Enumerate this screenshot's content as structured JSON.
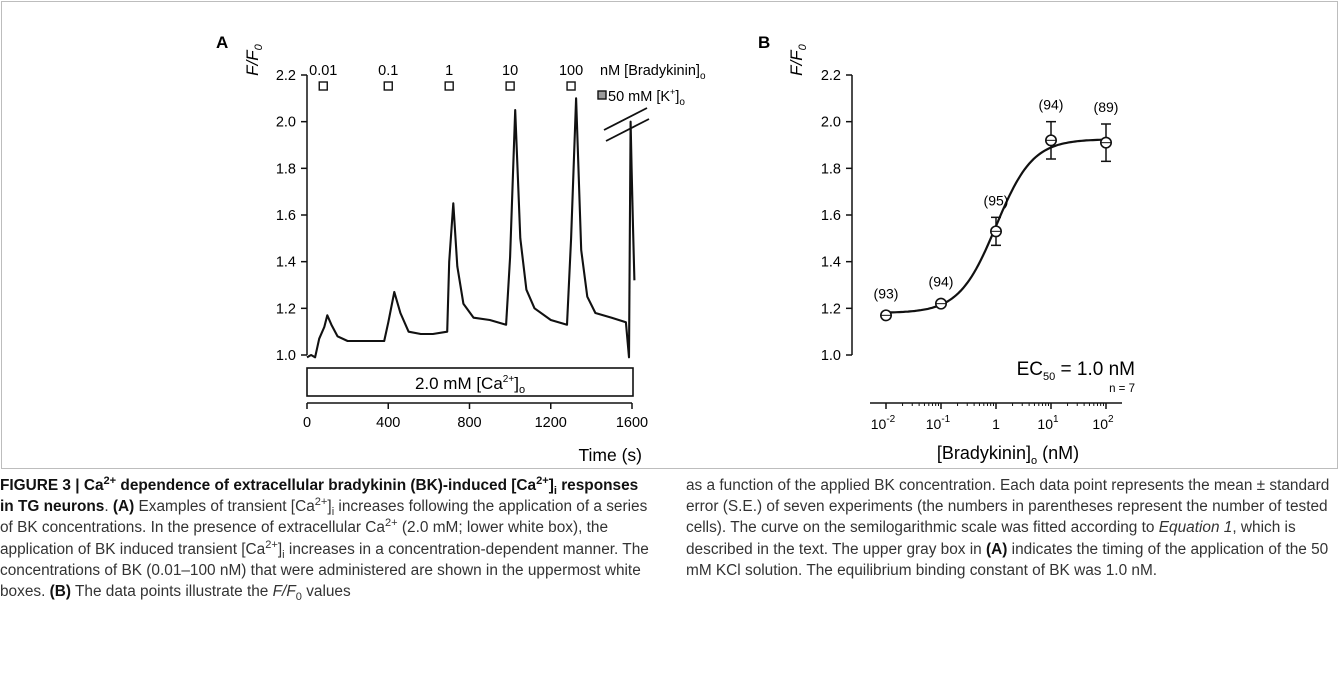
{
  "panelA": {
    "letter": "A",
    "ylabel": "F/F",
    "ylabel_sub": "0",
    "yticks": [
      "1.0",
      "1.2",
      "1.4",
      "1.6",
      "1.8",
      "2.0",
      "2.2"
    ],
    "xticks": [
      "0",
      "400",
      "800",
      "1200",
      "1600"
    ],
    "xlabel": "Time (s)",
    "conc_labels": [
      "0.01",
      "0.1",
      "1",
      "10",
      "100"
    ],
    "conc_unit_main": "nM [Bradykinin]",
    "conc_unit_sub": "o",
    "k_label_main": "50 mM [K",
    "k_label_sup": "+",
    "k_label_end": "]",
    "k_label_sub": "o",
    "box_label_main": "2.0 mM [Ca",
    "box_label_sup": "2+",
    "box_label_end": "]",
    "box_label_sub": "o"
  },
  "panelB": {
    "letter": "B",
    "ylabel": "F/F",
    "ylabel_sub": "0",
    "yticks": [
      "1.0",
      "1.2",
      "1.4",
      "1.6",
      "1.8",
      "2.0",
      "2.2"
    ],
    "xticks_base": [
      "10",
      "10",
      "1",
      "10",
      "10"
    ],
    "xticks_exp": [
      "-2",
      "-1",
      "",
      "1",
      "2"
    ],
    "xlabel_main": "[Bradykinin]",
    "xlabel_sub": "o",
    "xlabel_end": " (nM)",
    "ec50_main": "EC",
    "ec50_sub": "50",
    "ec50_value": " = 1.0  nM",
    "n_label": "n = 7",
    "cell_counts": [
      "(93)",
      "(94)",
      "(95)",
      "(94)",
      "(89)"
    ]
  },
  "chart_data": [
    {
      "type": "line",
      "panel": "A",
      "xlabel": "Time (s)",
      "ylabel": "F/F0",
      "xlim": [
        0,
        1600
      ],
      "ylim": [
        1.0,
        2.2
      ],
      "x": [
        0,
        20,
        40,
        60,
        85,
        100,
        120,
        150,
        200,
        280,
        380,
        400,
        430,
        460,
        500,
        560,
        620,
        690,
        700,
        720,
        740,
        770,
        820,
        900,
        980,
        1000,
        1025,
        1050,
        1080,
        1120,
        1200,
        1280,
        1300,
        1325,
        1350,
        1380,
        1420,
        1500,
        1570,
        1585,
        1593,
        1598,
        1605,
        1612
      ],
      "y": [
        0.99,
        1.0,
        0.99,
        1.07,
        1.12,
        1.17,
        1.13,
        1.08,
        1.06,
        1.06,
        1.06,
        1.14,
        1.27,
        1.18,
        1.1,
        1.09,
        1.09,
        1.1,
        1.4,
        1.65,
        1.38,
        1.22,
        1.16,
        1.15,
        1.13,
        1.42,
        2.05,
        1.5,
        1.28,
        1.2,
        1.15,
        1.13,
        1.5,
        2.1,
        1.45,
        1.25,
        1.18,
        1.16,
        1.14,
        0.99,
        2.0,
        1.8,
        1.55,
        1.32
      ],
      "bradykinin_nM": [
        0.01,
        0.1,
        1,
        10,
        100
      ],
      "bradykinin_application_time_s": [
        80,
        400,
        700,
        1000,
        1300
      ],
      "k_application_time_s": 1590,
      "ca_condition_mM": 2.0
    },
    {
      "type": "scatter",
      "panel": "B",
      "xscale": "log",
      "xlabel": "[Bradykinin]o (nM)",
      "ylabel": "F/F0",
      "xlim": [
        0.01,
        100
      ],
      "ylim": [
        1.0,
        2.2
      ],
      "x": [
        0.01,
        0.1,
        1,
        10,
        100
      ],
      "y": [
        1.17,
        1.22,
        1.53,
        1.92,
        1.91
      ],
      "error": [
        0.01,
        0.01,
        0.06,
        0.08,
        0.08
      ],
      "fit": {
        "EC50_nM": 1.0,
        "bottom": 1.18,
        "top": 1.925,
        "hill": 1.3
      }
    }
  ],
  "caption": {
    "label": "FIGURE 3 | Ca",
    "label_sup": "2+",
    "title_mid": " dependence of extracellular bradykinin (BK)-induced [Ca",
    "title_sup": "2+",
    "title_end": "]",
    "title_sub": "i",
    "title_tail": " responses in TG neurons",
    "title_dot": ".",
    "a_ref": "(A)",
    "s1": " Examples of transient [Ca",
    "s1_sup": "2+",
    "s1_end": "]",
    "s1_sub": "i",
    "s2": " increases following the application of a series of BK concentrations. In the presence of extracellular Ca",
    "s2_sup": "2+",
    "s3": " (2.0 mM; lower white box), the application of BK induced transient [Ca",
    "s3_sup": "2+",
    "s3_end": "]",
    "s3_sub": "i",
    "s4": " increases in a concentration-dependent manner. The concentrations of BK (0.01–100 nM) that were administered are shown in the uppermost white boxes.",
    "b_ref": "(B)",
    "s5": " The data points illustrate the ",
    "s5_i": "F/F",
    "s5_sub": "0",
    "s5_end": " values",
    "r1": "as a function of the applied BK concentration. Each data point represents the mean ± standard error (S.E.) of seven experiments (the numbers in parentheses represent the number of tested cells). The curve on the semilogarithmic scale was fitted according to ",
    "r1_i": "Equation 1",
    "r2": ", which is described in the text. The upper gray box in ",
    "r2_ref": "(A)",
    "r3": " indicates the timing of the application of the 50 mM KCl solution. The equilibrium binding constant of BK was 1.0 nM."
  },
  "colors": {
    "trace": "#111111",
    "k_box": "#9a9a9a",
    "frame": "#bdbdbd"
  }
}
